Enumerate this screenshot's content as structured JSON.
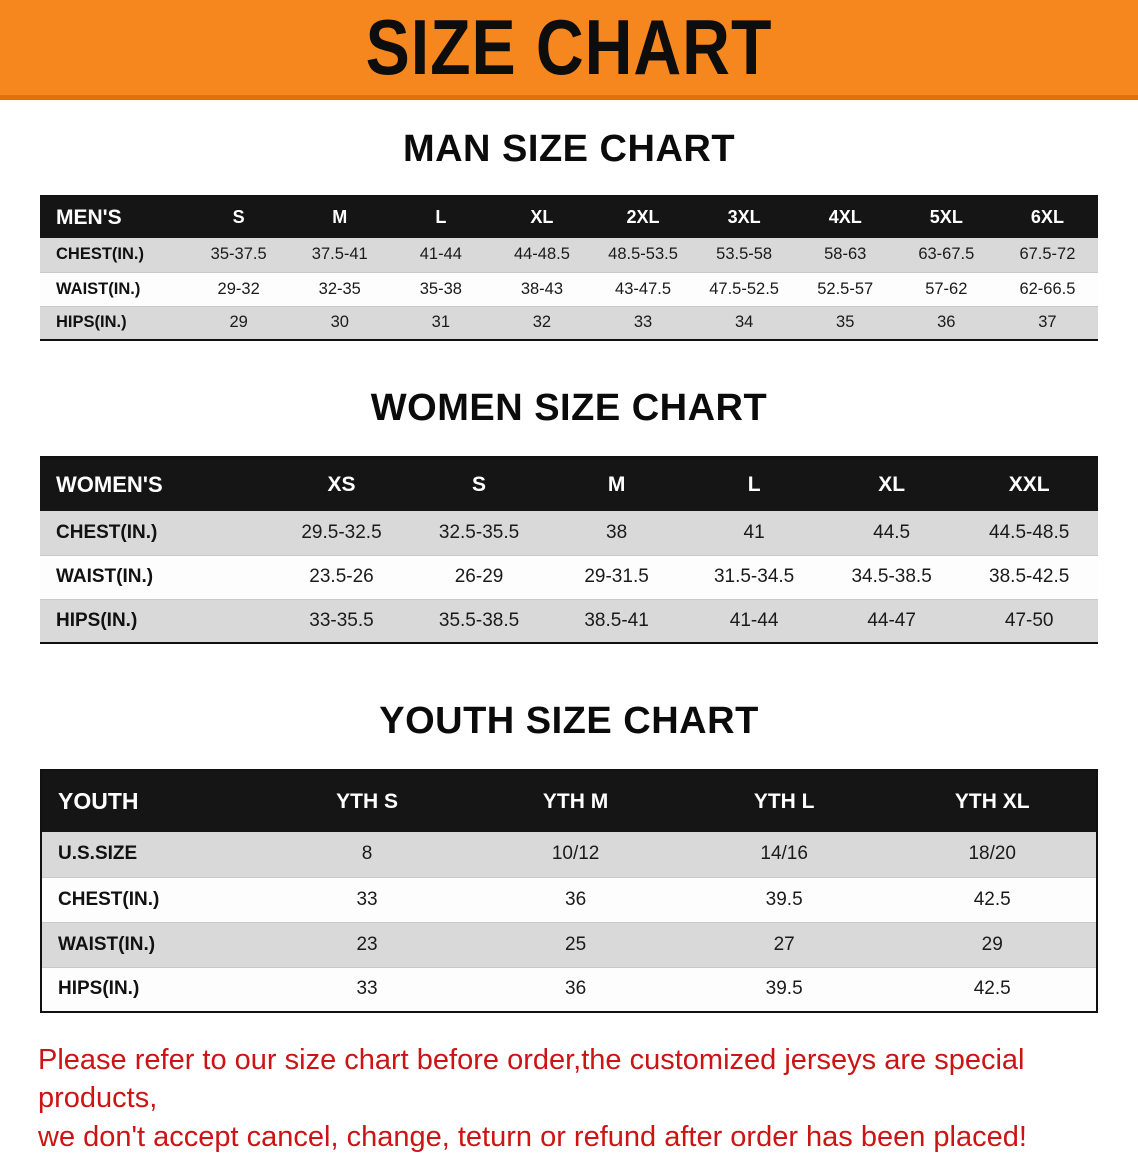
{
  "banner": {
    "title": "SIZE CHART"
  },
  "sections": [
    {
      "heading": "MAN SIZE CHART",
      "table": {
        "header": [
          "MEN'S",
          "S",
          "M",
          "L",
          "XL",
          "2XL",
          "3XL",
          "4XL",
          "5XL",
          "6XL"
        ],
        "rows": [
          [
            "CHEST(IN.)",
            "35-37.5",
            "37.5-41",
            "41-44",
            "44-48.5",
            "48.5-53.5",
            "53.5-58",
            "58-63",
            "63-67.5",
            "67.5-72"
          ],
          [
            "WAIST(IN.)",
            "29-32",
            "32-35",
            "35-38",
            "38-43",
            "43-47.5",
            "47.5-52.5",
            "52.5-57",
            "57-62",
            "62-66.5"
          ],
          [
            "HIPS(IN.)",
            "29",
            "30",
            "31",
            "32",
            "33",
            "34",
            "35",
            "36",
            "37"
          ]
        ]
      }
    },
    {
      "heading": "WOMEN SIZE CHART",
      "table": {
        "header": [
          "WOMEN'S",
          "XS",
          "S",
          "M",
          "L",
          "XL",
          "XXL"
        ],
        "rows": [
          [
            "CHEST(IN.)",
            "29.5-32.5",
            "32.5-35.5",
            "38",
            "41",
            "44.5",
            "44.5-48.5"
          ],
          [
            "WAIST(IN.)",
            "23.5-26",
            "26-29",
            "29-31.5",
            "31.5-34.5",
            "34.5-38.5",
            "38.5-42.5"
          ],
          [
            "HIPS(IN.)",
            "33-35.5",
            "35.5-38.5",
            "38.5-41",
            "41-44",
            "44-47",
            "47-50"
          ]
        ]
      }
    },
    {
      "heading": "YOUTH SIZE CHART",
      "table": {
        "header": [
          "YOUTH",
          "YTH S",
          "YTH M",
          "YTH L",
          "YTH XL"
        ],
        "rows": [
          [
            "U.S.SIZE",
            "8",
            "10/12",
            "14/16",
            "18/20"
          ],
          [
            "CHEST(IN.)",
            "33",
            "36",
            "39.5",
            "42.5"
          ],
          [
            "WAIST(IN.)",
            "23",
            "25",
            "27",
            "29"
          ],
          [
            "HIPS(IN.)",
            "33",
            "36",
            "39.5",
            "42.5"
          ]
        ]
      }
    }
  ],
  "footer": {
    "lines": [
      "Please refer to our size chart before order,the customized jerseys are special products,",
      "we don't accept cancel, change, teturn or refund after order has been placed!"
    ]
  },
  "colors": {
    "banner_bg": "#f6871f",
    "table_header_bg": "#151515",
    "row_alt_gray": "#d9d9d9",
    "disclaimer_red": "#cc1414"
  }
}
